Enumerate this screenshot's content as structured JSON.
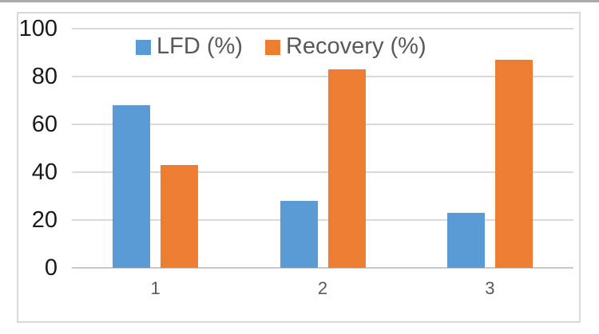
{
  "chart_data": {
    "type": "bar",
    "categories": [
      "1",
      "2",
      "3"
    ],
    "series": [
      {
        "name": "LFD (%)",
        "color": "#5B9BD5",
        "values": [
          68,
          28,
          23
        ]
      },
      {
        "name": "Recovery (%)",
        "color": "#ED7D31",
        "values": [
          43,
          83,
          87
        ]
      }
    ],
    "xlabel": "",
    "ylabel": "",
    "ylim": [
      0,
      100
    ],
    "yticks": [
      0,
      20,
      40,
      60,
      80,
      100
    ],
    "grid": true,
    "legend_position": "top"
  },
  "colors": {
    "background": "#FFFFFF",
    "frame_border": "#D9D9D9",
    "grid": "#D9D9D9",
    "axis": "#C8C8C8",
    "ytick_text": "#1A1A1A",
    "xtick_text": "#595959",
    "legend_text": "#595959",
    "top_edge": "#ABABAB"
  }
}
